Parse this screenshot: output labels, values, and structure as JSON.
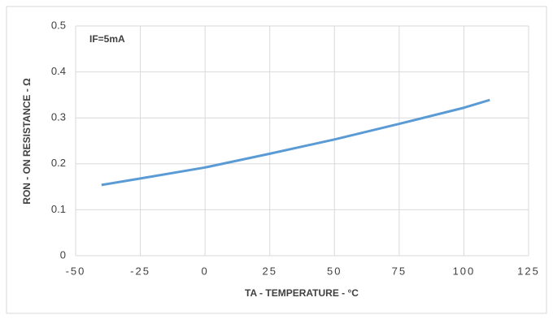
{
  "chart_data": {
    "type": "line",
    "ylabel": "RON - ON RESISTANCE - Ω",
    "xlabel": "TA - TEMPERATURE - °C",
    "annotation": "IF=5mA",
    "x": [
      -40,
      -25,
      0,
      25,
      50,
      75,
      100,
      110
    ],
    "series": [
      {
        "color": "#5b9bd5",
        "values": [
          0.154,
          0.168,
          0.192,
          0.222,
          0.253,
          0.287,
          0.322,
          0.339
        ]
      }
    ],
    "xlim": [
      -50,
      125
    ],
    "xticks": [
      -50,
      -25,
      0,
      25,
      50,
      75,
      100,
      125
    ],
    "ylim": [
      0,
      0.5
    ],
    "yticks": [
      0,
      0.1,
      0.2,
      0.3,
      0.4,
      0.5
    ],
    "grid": true
  }
}
